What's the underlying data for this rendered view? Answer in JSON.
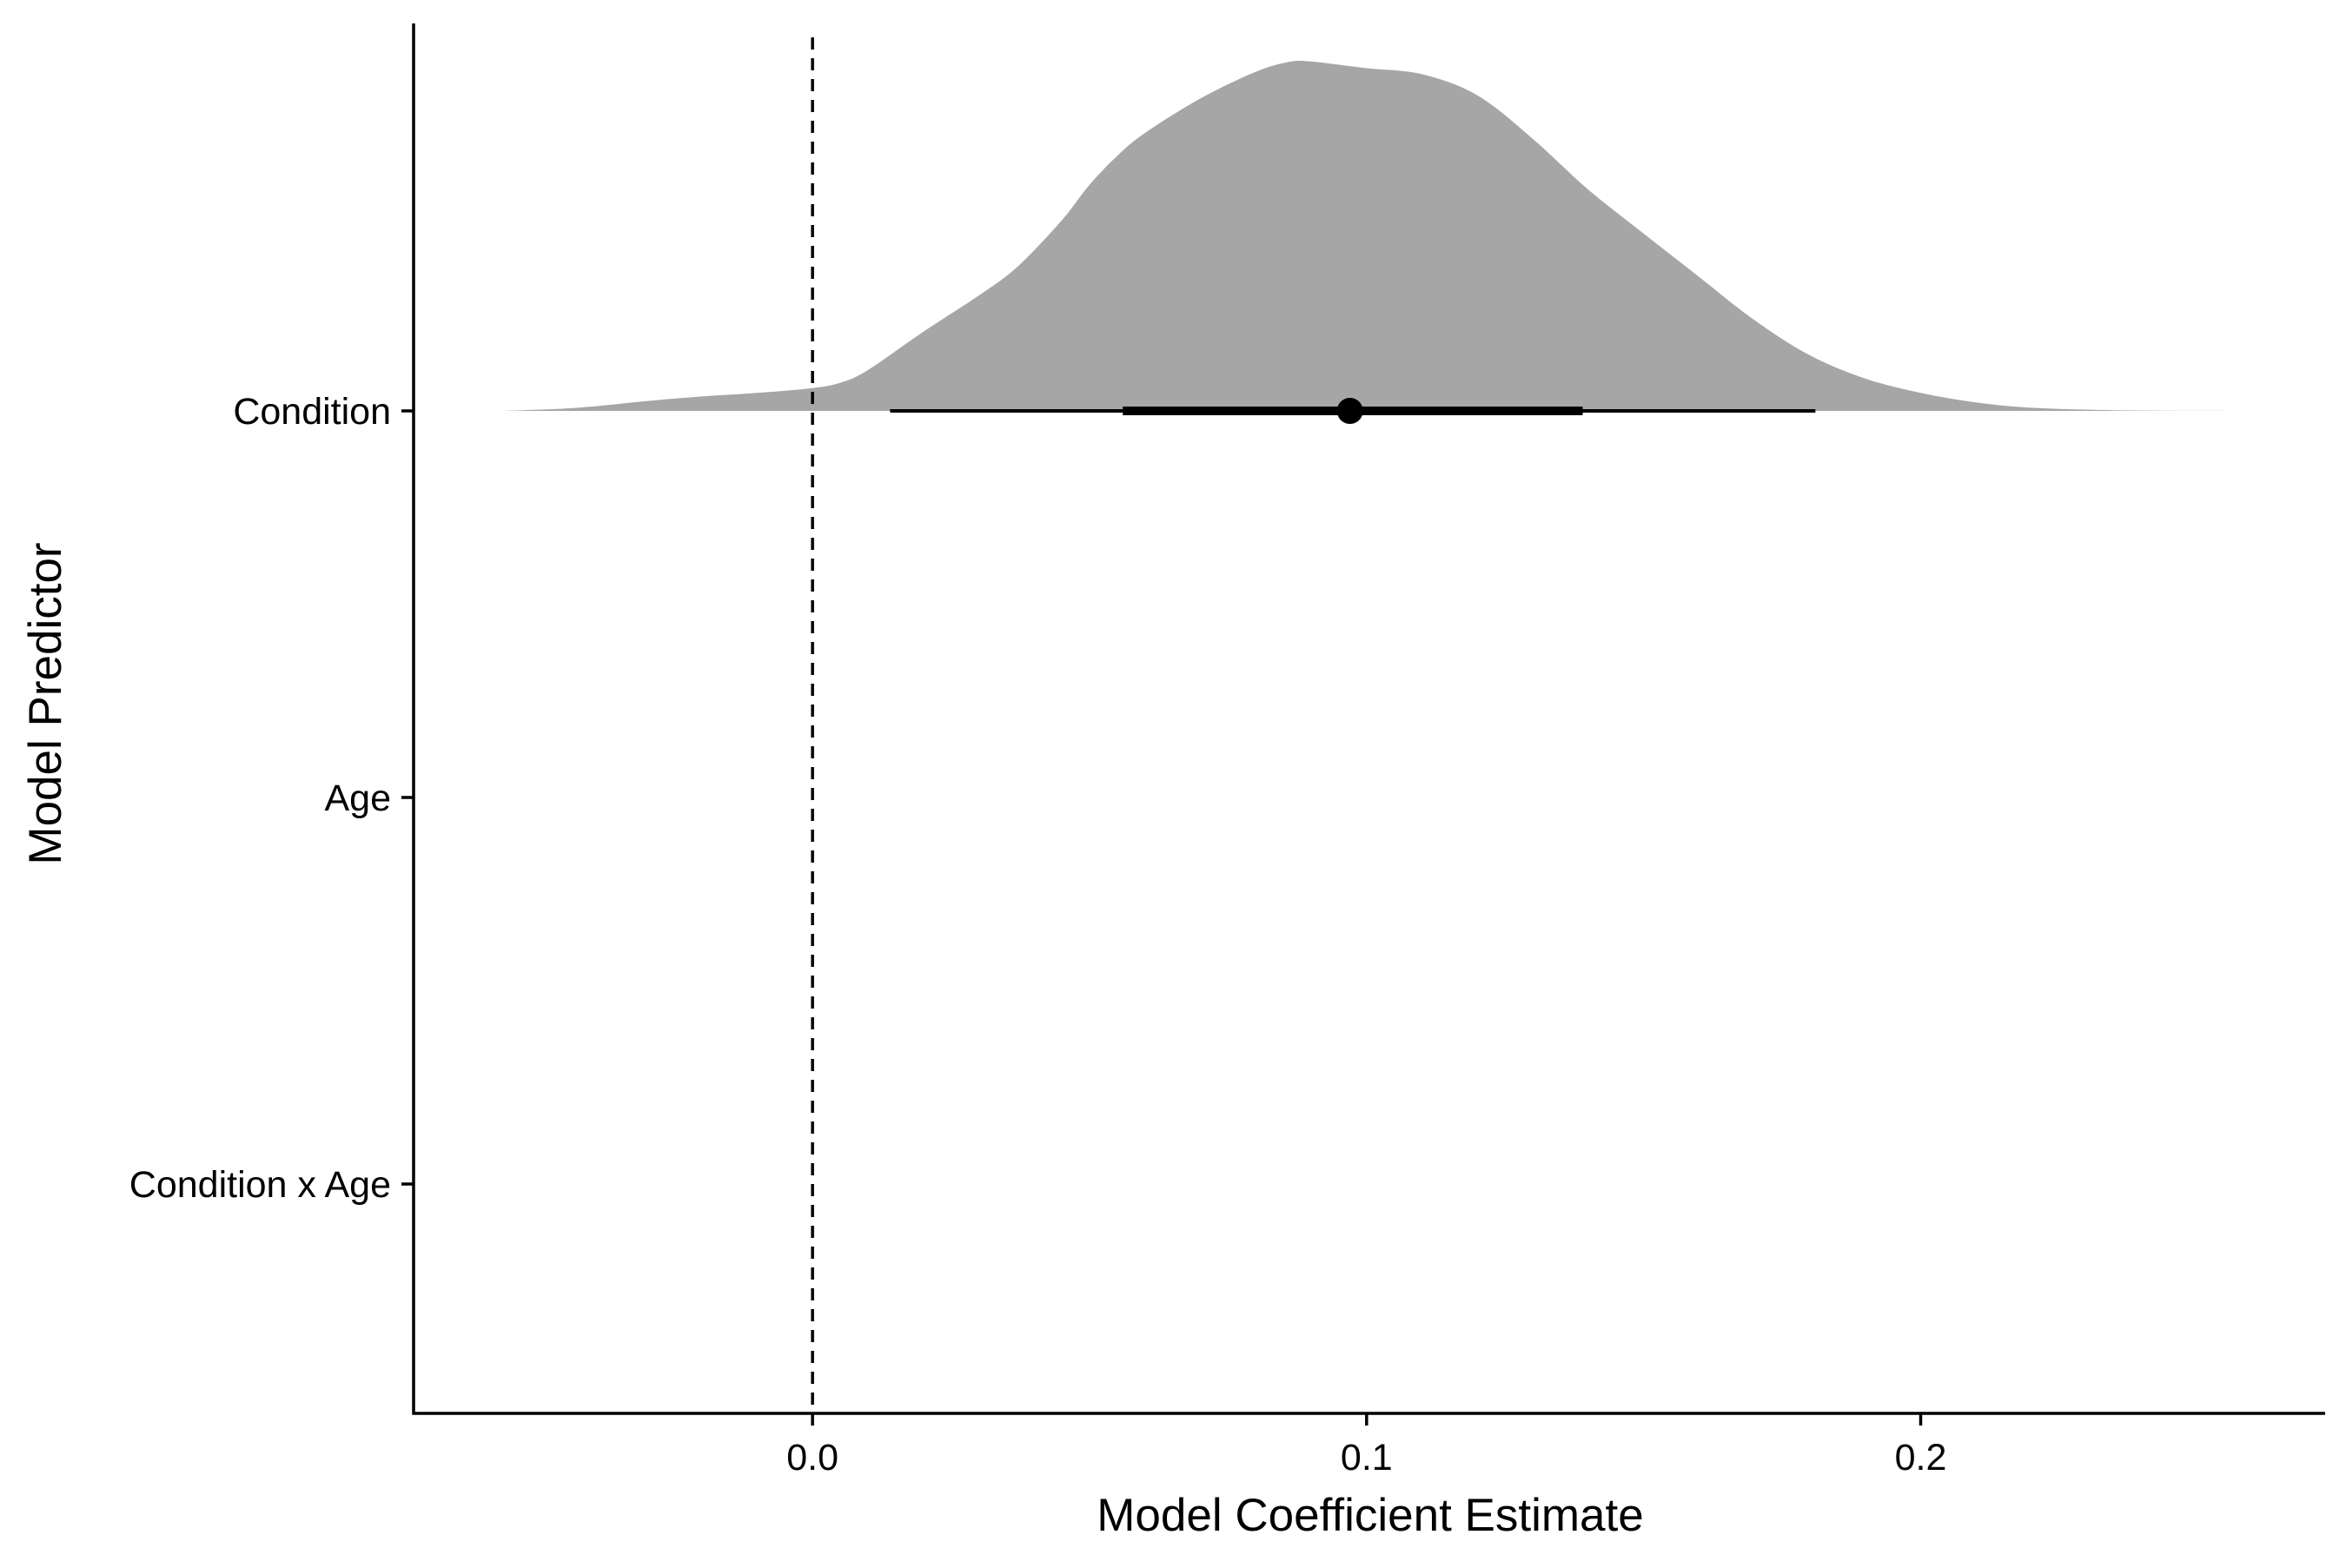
{
  "chart_data": {
    "type": "halfeye",
    "title": "",
    "xlabel": "Model Coefficient Estimate",
    "ylabel": "Model Predictor",
    "xlim": [
      -0.072,
      0.273
    ],
    "x_ticks": [
      0.0,
      0.1,
      0.2
    ],
    "x_tick_labels": [
      "0.0",
      "0.1",
      "0.2"
    ],
    "categories": [
      "Condition",
      "Age",
      "Condition x Age"
    ],
    "reference_line": {
      "x": 0.0,
      "style": "dashed"
    },
    "grid": false,
    "legend": "none",
    "series": [
      {
        "category": "Condition",
        "point_estimate": 0.097,
        "interval_inner": [
          0.056,
          0.139
        ],
        "interval_outer": [
          0.014,
          0.181
        ],
        "density": {
          "x": [
            -0.056,
            -0.047,
            -0.04,
            -0.03,
            -0.02,
            -0.01,
            0.0,
            0.005,
            0.01,
            0.02,
            0.03,
            0.037,
            0.045,
            0.05,
            0.055,
            0.06,
            0.07,
            0.08,
            0.086,
            0.09,
            0.1,
            0.11,
            0.12,
            0.13,
            0.14,
            0.15,
            0.16,
            0.17,
            0.18,
            0.19,
            0.2,
            0.21,
            0.22,
            0.235,
            0.257
          ],
          "y": [
            0.0,
            0.005,
            0.012,
            0.028,
            0.041,
            0.051,
            0.065,
            0.08,
            0.116,
            0.225,
            0.328,
            0.41,
            0.542,
            0.643,
            0.725,
            0.79,
            0.888,
            0.964,
            0.992,
            0.993,
            0.974,
            0.957,
            0.897,
            0.773,
            0.629,
            0.504,
            0.381,
            0.258,
            0.158,
            0.092,
            0.051,
            0.024,
            0.009,
            0.002,
            0.0
          ]
        },
        "fill": "#a6a6a6",
        "interval_color": "#000000"
      }
    ],
    "colors": {
      "density_fill": "#a6a6a6",
      "axis": "#000000",
      "interval": "#000000",
      "background": "#ffffff"
    }
  }
}
